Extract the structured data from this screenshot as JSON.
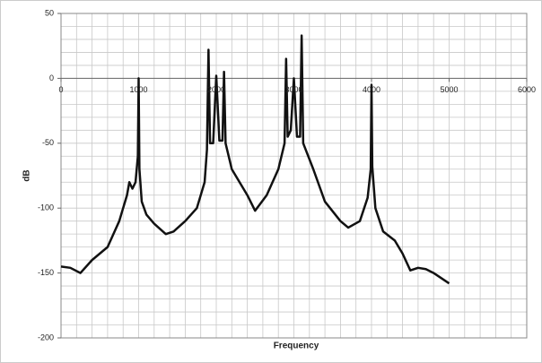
{
  "chart_data": {
    "type": "line",
    "x_label": "Frequency",
    "y_label": "dB",
    "xlim": [
      0,
      6000
    ],
    "ylim": [
      -200,
      50
    ],
    "xticks": [
      0,
      1000,
      2000,
      3000,
      4000,
      5000,
      6000
    ],
    "yticks": [
      50,
      0,
      -50,
      -100,
      -150,
      -200
    ],
    "grid": true,
    "minor_grid": {
      "x": 200,
      "y": 10
    },
    "series": [
      {
        "name": "dB",
        "color": "#111111",
        "x": [
          0,
          120,
          250,
          400,
          600,
          750,
          850,
          880,
          920,
          960,
          990,
          1000,
          1010,
          1040,
          1100,
          1200,
          1350,
          1450,
          1600,
          1750,
          1850,
          1880,
          1900,
          1920,
          1960,
          2000,
          2040,
          2080,
          2100,
          2120,
          2200,
          2400,
          2500,
          2650,
          2800,
          2880,
          2900,
          2920,
          2960,
          3000,
          3040,
          3080,
          3100,
          3120,
          3250,
          3400,
          3600,
          3700,
          3850,
          3950,
          3990,
          4000,
          4010,
          4050,
          4150,
          4300,
          4400,
          4500,
          4600,
          4700,
          4800,
          5000
        ],
        "values": [
          -145,
          -146,
          -150,
          -140,
          -130,
          -110,
          -90,
          -80,
          -85,
          -80,
          -60,
          0,
          -70,
          -95,
          -105,
          -112,
          -120,
          -118,
          -110,
          -100,
          -80,
          -55,
          22,
          -50,
          -50,
          2,
          -48,
          -48,
          5,
          -50,
          -70,
          -90,
          -102,
          -90,
          -70,
          -50,
          15,
          -45,
          -40,
          0,
          -45,
          -45,
          33,
          -50,
          -70,
          -95,
          -110,
          -115,
          -110,
          -92,
          -70,
          -5,
          -68,
          -100,
          -118,
          -125,
          -135,
          -148,
          -146,
          -147,
          -150,
          -158
        ]
      }
    ]
  }
}
